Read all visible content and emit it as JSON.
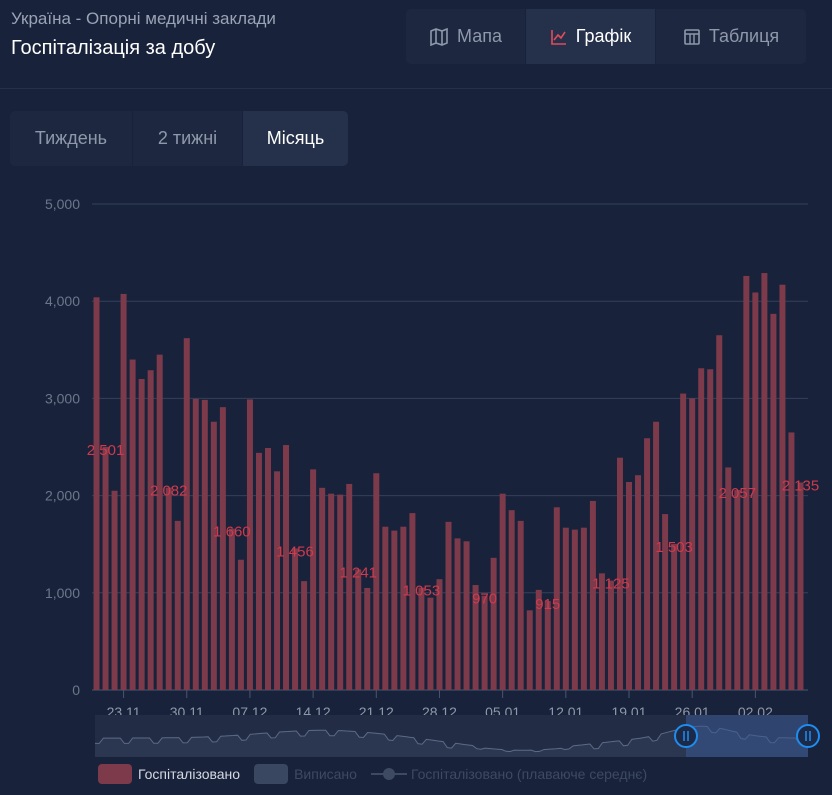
{
  "header": {
    "subtitle": "Україна - Опорні медичні заклади",
    "title": "Госпіталізація за добу"
  },
  "view_tabs": [
    {
      "label": "Мапа",
      "icon": "map-icon"
    },
    {
      "label": "Графік",
      "icon": "line-chart-icon",
      "active": true
    },
    {
      "label": "Таблиця",
      "icon": "table-icon"
    }
  ],
  "range_tabs": [
    {
      "label": "Тиждень"
    },
    {
      "label": "2 тижні"
    },
    {
      "label": "Місяць",
      "active": true
    }
  ],
  "colors": {
    "bar": "#7c3a4b",
    "label": "#cf3a4c",
    "grid": "#34405a",
    "accent": "#1f8cf0"
  },
  "chart_data": {
    "type": "bar",
    "ylim": [
      0,
      5000
    ],
    "yticks": [
      "0",
      "1,000",
      "2,000",
      "3,000",
      "4,000",
      "5,000"
    ],
    "xticks": [
      {
        "label": "23.11",
        "index": 3
      },
      {
        "label": "30.11",
        "index": 10
      },
      {
        "label": "07.12",
        "index": 17
      },
      {
        "label": "14.12",
        "index": 24
      },
      {
        "label": "21.12",
        "index": 31
      },
      {
        "label": "28.12",
        "index": 38
      },
      {
        "label": "05.01",
        "index": 45
      },
      {
        "label": "12.01",
        "index": 52
      },
      {
        "label": "19.01",
        "index": 59
      },
      {
        "label": "26.01",
        "index": 66
      },
      {
        "label": "02.02",
        "index": 73
      }
    ],
    "series": [
      {
        "name": "Госпіталізовано",
        "values": [
          4040,
          2501,
          2050,
          4075,
          3400,
          3200,
          3290,
          3450,
          2082,
          1740,
          3620,
          2995,
          2985,
          2760,
          2910,
          1660,
          1340,
          2990,
          2440,
          2490,
          2250,
          2520,
          1456,
          1120,
          2270,
          2080,
          2020,
          2010,
          2120,
          1241,
          1050,
          2230,
          1680,
          1640,
          1680,
          1820,
          1053,
          950,
          1140,
          1730,
          1560,
          1530,
          1080,
          970,
          1360,
          2020,
          1850,
          1740,
          820,
          1030,
          915,
          1880,
          1670,
          1650,
          1670,
          1945,
          1200,
          1125,
          2390,
          2140,
          2210,
          2590,
          2760,
          1810,
          1503,
          3050,
          3000,
          3310,
          3300,
          3650,
          2290,
          2057,
          4260,
          4090,
          4290,
          3870,
          4170,
          2650,
          2135
        ]
      }
    ],
    "data_labels": [
      {
        "index": 1,
        "text": "2 501"
      },
      {
        "index": 8,
        "text": "2 082"
      },
      {
        "index": 15,
        "text": "1 660"
      },
      {
        "index": 22,
        "text": "1 456"
      },
      {
        "index": 29,
        "text": "1 241"
      },
      {
        "index": 36,
        "text": "1 053"
      },
      {
        "index": 43,
        "text": "970"
      },
      {
        "index": 50,
        "text": "915"
      },
      {
        "index": 57,
        "text": "1 125"
      },
      {
        "index": 64,
        "text": "1 503"
      },
      {
        "index": 71,
        "text": "2 057"
      },
      {
        "index": 78,
        "text": "2 135"
      }
    ],
    "grid": true,
    "legend_position": "bottom-left",
    "legend": [
      {
        "label": "Госпіталізовано",
        "color": "#7c3a4b",
        "active": true
      },
      {
        "label": "Виписано",
        "color": "#3a4761",
        "active": false
      },
      {
        "label": "Госпіталізовано (плаваюче середнє)",
        "active": false
      }
    ]
  }
}
